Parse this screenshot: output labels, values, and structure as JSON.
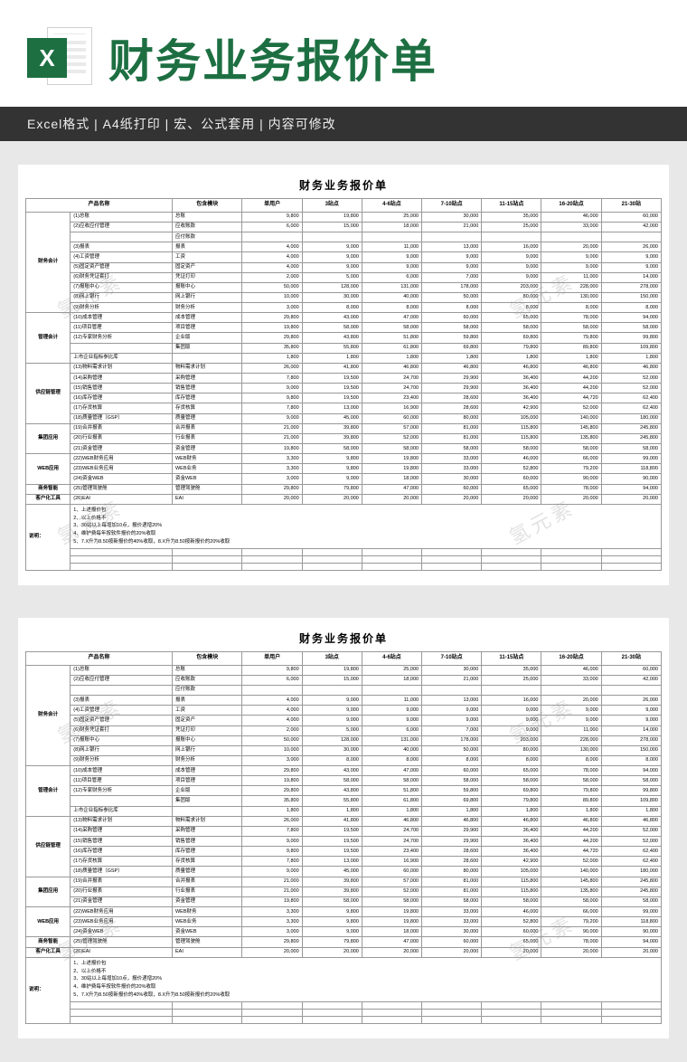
{
  "header": {
    "icon_letter": "X",
    "title": "财务业务报价单",
    "title_color": "#1d6f42"
  },
  "subbar": "Excel格式 |  A4纸打印 |  宏、公式套用 |  内容可修改",
  "watermark": "氢元素",
  "sheet": {
    "title": "财务业务报价单",
    "columns": [
      "产品名称",
      "包含模块",
      "单用户",
      "3站点",
      "4-6站点",
      "7-10站点",
      "11-15站点",
      "16-20站点",
      "21-30站"
    ],
    "groups": [
      {
        "category": "财务会计",
        "rows": [
          {
            "name": "(1)总账",
            "mod": "总账",
            "v": [
              "9,800",
              "19,800",
              "25,000",
              "30,000",
              "35,000",
              "46,000",
              "60,000"
            ]
          },
          {
            "name": "(2)应收应付管理",
            "mod": "应收账款",
            "v": [
              "6,000",
              "15,000",
              "18,000",
              "21,000",
              "25,000",
              "33,000",
              "42,000"
            ]
          },
          {
            "name": "",
            "mod": "应付账款",
            "v": [
              "",
              "",
              "",
              "",
              "",
              "",
              ""
            ]
          },
          {
            "name": "(3)报表",
            "mod": "报表",
            "v": [
              "4,000",
              "9,000",
              "11,000",
              "13,000",
              "16,000",
              "20,000",
              "26,000"
            ]
          },
          {
            "name": "(4)工资管理",
            "mod": "工资",
            "v": [
              "4,000",
              "9,000",
              "9,000",
              "9,000",
              "9,000",
              "9,000",
              "9,000"
            ]
          },
          {
            "name": "(5)固定资产管理",
            "mod": "固定资产",
            "v": [
              "4,000",
              "9,000",
              "9,000",
              "9,000",
              "9,000",
              "9,000",
              "9,000"
            ]
          },
          {
            "name": "(6)财务凭证套打",
            "mod": "凭证打印",
            "v": [
              "2,000",
              "5,000",
              "6,000",
              "7,000",
              "9,000",
              "11,000",
              "14,000"
            ]
          },
          {
            "name": "(7)报账中心",
            "mod": "报账中心",
            "v": [
              "50,000",
              "128,000",
              "131,000",
              "178,000",
              "203,000",
              "228,000",
              "278,000"
            ]
          },
          {
            "name": "(8)网上银行",
            "mod": "网上银行",
            "v": [
              "10,000",
              "30,000",
              "40,000",
              "50,000",
              "80,000",
              "130,000",
              "150,000"
            ]
          },
          {
            "name": "(9)财务分析",
            "mod": "财务分析",
            "v": [
              "3,000",
              "8,000",
              "8,000",
              "8,000",
              "8,000",
              "8,000",
              "8,000"
            ]
          }
        ]
      },
      {
        "category": "管理会计",
        "rows": [
          {
            "name": "(10)成本管理",
            "mod": "成本管理",
            "v": [
              "29,800",
              "43,000",
              "47,000",
              "60,000",
              "65,000",
              "78,000",
              "94,000"
            ]
          },
          {
            "name": "(11)项目管理",
            "mod": "项目管理",
            "v": [
              "19,800",
              "58,000",
              "58,000",
              "58,000",
              "58,000",
              "58,000",
              "58,000"
            ]
          },
          {
            "name": "(12)专家财务分析",
            "mod": "企业版",
            "v": [
              "29,800",
              "43,800",
              "51,800",
              "59,800",
              "69,800",
              "79,800",
              "99,800"
            ]
          },
          {
            "name": "",
            "mod": "集团版",
            "v": [
              "35,800",
              "55,800",
              "61,800",
              "69,800",
              "79,800",
              "89,800",
              "109,800"
            ]
          },
          {
            "name": "上市企业指标参比库",
            "mod": "",
            "v": [
              "1,800",
              "1,800",
              "1,800",
              "1,800",
              "1,800",
              "1,800",
              "1,800"
            ]
          }
        ]
      },
      {
        "category": "供应链管理",
        "rows": [
          {
            "name": "(13)物料需求计划",
            "mod": "物料需求计划",
            "v": [
              "26,000",
              "41,800",
              "46,800",
              "46,800",
              "46,800",
              "46,800",
              "46,800"
            ]
          },
          {
            "name": "(14)采购管理",
            "mod": "采购管理",
            "v": [
              "7,800",
              "19,500",
              "24,700",
              "29,900",
              "36,400",
              "44,200",
              "52,000"
            ]
          },
          {
            "name": "(15)销售管理",
            "mod": "销售管理",
            "v": [
              "9,000",
              "19,500",
              "24,700",
              "29,900",
              "36,400",
              "44,200",
              "52,000"
            ]
          },
          {
            "name": "(16)库存管理",
            "mod": "库存管理",
            "v": [
              "9,800",
              "19,500",
              "23,400",
              "28,600",
              "36,400",
              "44,720",
              "62,400"
            ]
          },
          {
            "name": "(17)存货核算",
            "mod": "存货核算",
            "v": [
              "7,800",
              "13,000",
              "16,900",
              "28,600",
              "42,900",
              "52,000",
              "62,400"
            ]
          },
          {
            "name": "(18)质量管理（GSP）",
            "mod": "质量管理",
            "v": [
              "9,000",
              "45,000",
              "60,000",
              "80,000",
              "105,000",
              "140,000",
              "180,000"
            ]
          }
        ]
      },
      {
        "category": "集团应用",
        "rows": [
          {
            "name": "(19)合并报表",
            "mod": "合并报表",
            "v": [
              "21,000",
              "39,800",
              "57,000",
              "81,000",
              "115,800",
              "145,800",
              "245,800"
            ]
          },
          {
            "name": "(20)行业报表",
            "mod": "行业报表",
            "v": [
              "21,000",
              "39,800",
              "52,000",
              "81,000",
              "115,800",
              "135,800",
              "245,800"
            ]
          },
          {
            "name": "(21)资金管理",
            "mod": "资金管理",
            "v": [
              "19,800",
              "58,000",
              "58,000",
              "58,000",
              "58,000",
              "58,000",
              "58,000"
            ]
          }
        ]
      },
      {
        "category": "WEB应用",
        "rows": [
          {
            "name": "(22)WEB财务应用",
            "mod": "WEB财务",
            "v": [
              "3,300",
              "9,800",
              "19,800",
              "33,000",
              "46,000",
              "66,000",
              "99,000"
            ]
          },
          {
            "name": "(23)WEB业务应用",
            "mod": "WEB业务",
            "v": [
              "3,300",
              "9,800",
              "19,800",
              "33,000",
              "52,800",
              "79,200",
              "118,800"
            ]
          },
          {
            "name": "(24)资金WEB",
            "mod": "资金WEB",
            "v": [
              "3,000",
              "9,000",
              "18,000",
              "30,000",
              "60,000",
              "90,000",
              "90,000"
            ]
          }
        ]
      },
      {
        "category": "商务智能",
        "rows": [
          {
            "name": "(25)管理驾驶舱",
            "mod": "管理驾驶舱",
            "v": [
              "29,800",
              "79,800",
              "47,000",
              "60,000",
              "65,000",
              "78,000",
              "94,000"
            ]
          }
        ]
      },
      {
        "category": "客户化工具",
        "rows": [
          {
            "name": "(26)EAI",
            "mod": "EAI",
            "v": [
              "20,000",
              "20,000",
              "20,000",
              "20,000",
              "20,000",
              "20,000",
              "20,000"
            ]
          }
        ]
      }
    ],
    "notes_label": "说明：",
    "notes": [
      "1、上述报价包",
      "2、以上价格不",
      "3、30站以上每增加10点，报价递增20%",
      "4、维护费每年按软件报价的20%收取",
      "5、7.X升为8.50按新报价的40%收取，8.X升为8.50按新报价的20%收取"
    ]
  }
}
